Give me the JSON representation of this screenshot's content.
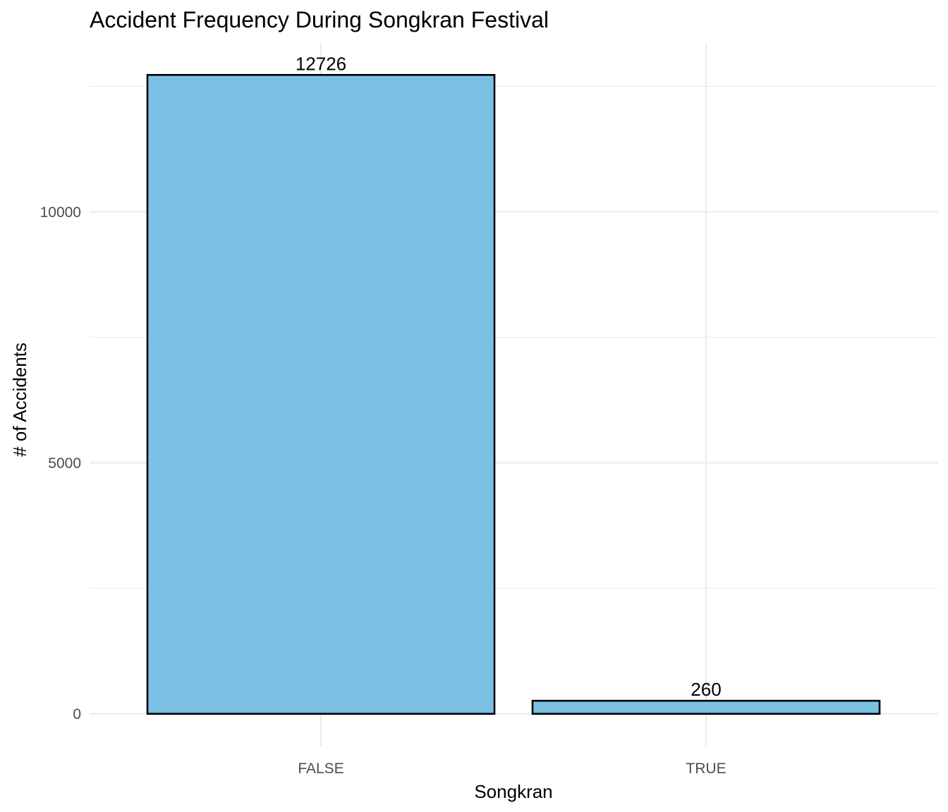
{
  "chart_data": {
    "type": "bar",
    "title": "Accident Frequency During Songkran Festival",
    "xlabel": "Songkran",
    "ylabel": "# of Accidents",
    "categories": [
      "FALSE",
      "TRUE"
    ],
    "values": [
      12726,
      260
    ],
    "data_labels": [
      "12726",
      "260"
    ],
    "y_ticks": [
      0,
      5000,
      10000
    ],
    "y_tick_labels": [
      "0",
      "5000",
      "10000"
    ],
    "ylim": [
      -636,
      13362
    ],
    "grid": true,
    "legend": "none",
    "colors": {
      "bar_fill": "#7AC1E4",
      "bar_stroke": "#000000"
    }
  }
}
